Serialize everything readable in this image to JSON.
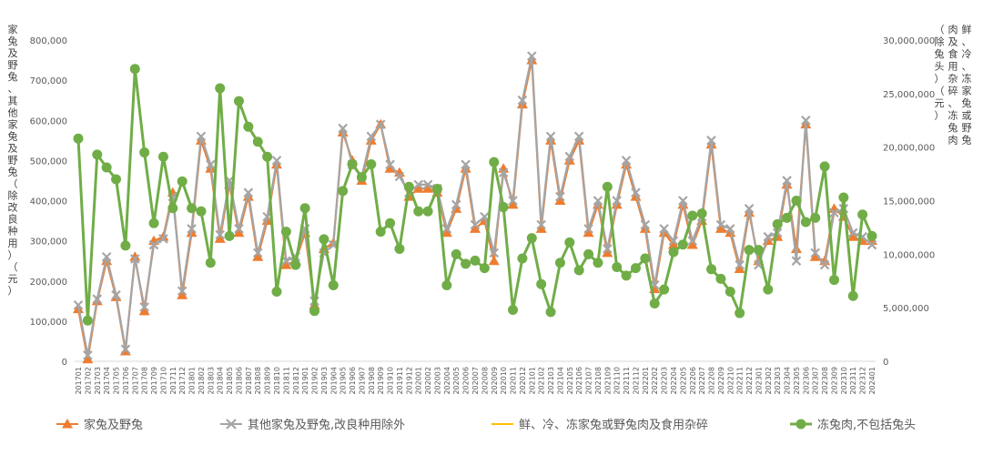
{
  "chart_data": {
    "type": "line",
    "title": "",
    "xlabel": "",
    "ylabel": "家兔及野兔、其他家兔及野兔（除改良种用）（元）",
    "y2label": "鲜、冷、冻家兔或野兔肉及食用杂碎、冻兔肉（除兔头）（元）",
    "ylim": [
      0,
      800000
    ],
    "y2lim": [
      0,
      30000000
    ],
    "y_ticks": [
      "0",
      "100,000",
      "200,000",
      "300,000",
      "400,000",
      "500,000",
      "600,000",
      "700,000",
      "800,000"
    ],
    "y2_ticks": [
      "0",
      "5,000,000",
      "10,000,000",
      "15,000,000",
      "20,000,000",
      "25,000,000",
      "30,000,000"
    ],
    "grid": false,
    "legend_position": "bottom",
    "x": [
      "201701",
      "201702",
      "201703",
      "201704",
      "201705",
      "201706",
      "201707",
      "201708",
      "201709",
      "201710",
      "201711",
      "201712",
      "201801",
      "201802",
      "201803",
      "201804",
      "201805",
      "201806",
      "201807",
      "201808",
      "201809",
      "201810",
      "201811",
      "201812",
      "201901",
      "201902",
      "201903",
      "201904",
      "201905",
      "201906",
      "201907",
      "201908",
      "201909",
      "201910",
      "201911",
      "201912",
      "202001",
      "202002",
      "202003",
      "202004",
      "202005",
      "202006",
      "202007",
      "202008",
      "202009",
      "202010",
      "202011",
      "202012",
      "202101",
      "202102",
      "202103",
      "202104",
      "202105",
      "202106",
      "202107",
      "202108",
      "202109",
      "202110",
      "202111",
      "202112",
      "202201",
      "202202",
      "202203",
      "202204",
      "202205",
      "202206",
      "202207",
      "202208",
      "202209",
      "202210",
      "202211",
      "202212",
      "202301",
      "202302",
      "202303",
      "202304",
      "202305",
      "202306",
      "202307",
      "202308",
      "202309",
      "202310",
      "202311",
      "202312",
      "202401"
    ],
    "series": [
      {
        "name": "家兔及野兔",
        "axis": "left",
        "marker": "triangle",
        "color": "#ED7D31",
        "values": [
          130000,
          5000,
          150000,
          250000,
          160000,
          25000,
          260000,
          125000,
          300000,
          310000,
          420000,
          165000,
          320000,
          550000,
          480000,
          305000,
          440000,
          320000,
          410000,
          260000,
          350000,
          490000,
          240000,
          250000,
          320000,
          140000,
          280000,
          295000,
          570000,
          500000,
          450000,
          550000,
          590000,
          480000,
          470000,
          410000,
          430000,
          430000,
          420000,
          320000,
          380000,
          480000,
          330000,
          350000,
          250000,
          480000,
          390000,
          640000,
          750000,
          330000,
          550000,
          400000,
          500000,
          550000,
          320000,
          390000,
          270000,
          390000,
          490000,
          410000,
          330000,
          180000,
          320000,
          290000,
          390000,
          290000,
          350000,
          540000,
          330000,
          320000,
          230000,
          370000,
          250000,
          300000,
          310000,
          440000,
          280000,
          590000,
          260000,
          250000,
          380000,
          360000,
          310000,
          300000,
          300000
        ]
      },
      {
        "name": "其他家兔及野兔,改良种用除外",
        "axis": "left",
        "marker": "cross",
        "color": "#A5A5A5",
        "values": [
          140000,
          15000,
          155000,
          260000,
          165000,
          30000,
          255000,
          135000,
          290000,
          305000,
          410000,
          175000,
          330000,
          560000,
          490000,
          315000,
          450000,
          330000,
          420000,
          270000,
          360000,
          500000,
          250000,
          260000,
          330000,
          150000,
          270000,
          290000,
          580000,
          490000,
          460000,
          560000,
          590000,
          490000,
          460000,
          420000,
          440000,
          440000,
          430000,
          330000,
          390000,
          490000,
          340000,
          360000,
          270000,
          470000,
          400000,
          650000,
          760000,
          340000,
          560000,
          410000,
          510000,
          560000,
          330000,
          400000,
          280000,
          400000,
          500000,
          420000,
          340000,
          190000,
          330000,
          300000,
          400000,
          300000,
          360000,
          550000,
          340000,
          330000,
          240000,
          380000,
          240000,
          310000,
          320000,
          450000,
          250000,
          600000,
          270000,
          240000,
          370000,
          380000,
          320000,
          310000,
          290000
        ]
      },
      {
        "name": "鲜、冷、冻家兔或野兔肉及食用杂碎",
        "axis": "right",
        "marker": "none",
        "color": "#FFC000",
        "values": [
          20800000,
          3800000,
          19300000,
          18100000,
          17000000,
          10800000,
          27300000,
          19500000,
          12900000,
          19100000,
          14300000,
          16800000,
          14300000,
          14000000,
          9200000,
          25500000,
          11700000,
          24300000,
          21900000,
          20500000,
          19100000,
          6500000,
          12100000,
          9000000,
          14300000,
          4700000,
          11400000,
          7100000,
          15900000,
          18400000,
          17200000,
          18400000,
          12100000,
          12900000,
          10500000,
          16300000,
          14000000,
          14000000,
          16100000,
          7100000,
          10000000,
          9100000,
          9400000,
          8700000,
          18600000,
          14400000,
          4800000,
          9600000,
          11500000,
          7200000,
          4600000,
          9200000,
          11100000,
          8500000,
          10000000,
          9200000,
          16300000,
          8800000,
          8000000,
          8700000,
          9600000,
          5400000,
          6700000,
          10200000,
          10900000,
          13600000,
          13800000,
          8600000,
          7700000,
          6500000,
          4500000,
          10400000,
          10400000,
          6700000,
          12800000,
          13400000,
          15000000,
          13000000,
          13400000,
          18200000,
          7600000,
          15300000,
          6100000,
          13700000,
          11700000
        ]
      },
      {
        "name": "冻兔肉,不包括兔头",
        "axis": "right",
        "marker": "circle",
        "color": "#70AD47",
        "values": [
          20800000,
          3800000,
          19300000,
          18100000,
          17000000,
          10800000,
          27300000,
          19500000,
          12900000,
          19100000,
          14300000,
          16800000,
          14300000,
          14000000,
          9200000,
          25500000,
          11700000,
          24300000,
          21900000,
          20500000,
          19100000,
          6500000,
          12100000,
          9000000,
          14300000,
          4700000,
          11400000,
          7100000,
          15900000,
          18400000,
          17200000,
          18400000,
          12100000,
          12900000,
          10500000,
          16300000,
          14000000,
          14000000,
          16100000,
          7100000,
          10000000,
          9100000,
          9400000,
          8700000,
          18600000,
          14400000,
          4800000,
          9600000,
          11500000,
          7200000,
          4600000,
          9200000,
          11100000,
          8500000,
          10000000,
          9200000,
          16300000,
          8800000,
          8000000,
          8700000,
          9600000,
          5400000,
          6700000,
          10200000,
          10900000,
          13600000,
          13800000,
          8600000,
          7700000,
          6500000,
          4500000,
          10400000,
          10400000,
          6700000,
          12800000,
          13400000,
          15000000,
          13000000,
          13400000,
          18200000,
          7600000,
          15300000,
          6100000,
          13700000,
          11700000
        ]
      }
    ]
  }
}
